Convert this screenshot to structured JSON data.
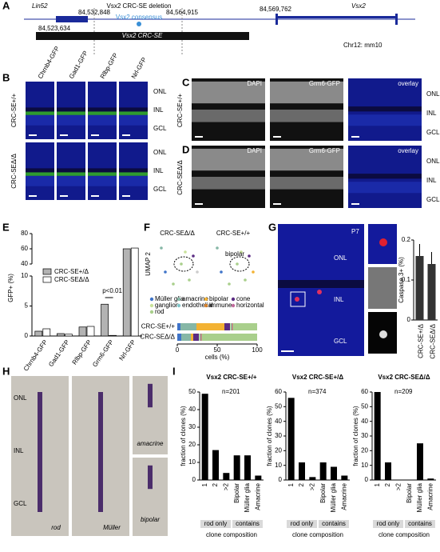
{
  "panel_a": {
    "letter": "A",
    "gene_left": "Lin52",
    "deletion_label": "Vsx2 CRC-SE deletion",
    "coord_start": "84,532,848",
    "coord_end": "84,564,915",
    "coord_vsx2": "84,569,762",
    "gene_right": "Vsx2",
    "consensus": "Vsx2 consensus",
    "coord_se_start": "84,523,634",
    "se_label": "Vsx2 CRC-SE",
    "assembly": "Chr12: mm10"
  },
  "panel_b": {
    "letter": "B",
    "columns": [
      "Chrnb4-GFP",
      "Gad1-GFP",
      "Rlbp-GFP",
      "Nrl-GFP"
    ],
    "rows": [
      "CRC-SE+/+",
      "CRC-SEΔ/Δ"
    ],
    "layers": [
      "ONL",
      "INL",
      "GCL"
    ]
  },
  "panel_cd": {
    "letters": [
      "C",
      "D"
    ],
    "columns": [
      "DAPI",
      "Grm6-GFP",
      "overlay"
    ],
    "rows": [
      "CRC-SE+/+",
      "CRC-SEΔ/Δ"
    ],
    "layers": [
      "ONL",
      "INL",
      "GCL"
    ]
  },
  "panel_e": {
    "letter": "E"
  },
  "panel_f": {
    "letter": "F",
    "umap_titles": [
      "CRC-SEΔ/Δ",
      "CRC-SE+/+"
    ],
    "umap_axis": "UMAP 2",
    "cluster": "bipolar"
  },
  "panel_g": {
    "letter": "G",
    "age": "P7",
    "layers": [
      "ONL",
      "INL",
      "GCL"
    ]
  },
  "panel_h": {
    "letter": "H",
    "layers": [
      "ONL",
      "INL",
      "GCL"
    ],
    "cells": [
      "rod",
      "Müller",
      "amacrine",
      "bipolar"
    ]
  },
  "panel_i": {
    "letter": "I"
  },
  "chart_data": [
    {
      "type": "bar",
      "ylabel": "GFP+ (%)",
      "categories": [
        "Chrnb4-GFP",
        "Gad1-GFP",
        "Rlbp-GFP",
        "Grm6-GFP",
        "Nrl-GFP"
      ],
      "series": [
        {
          "name": "CRC-SE+/Δ",
          "color": "#b3b3b3",
          "values": [
            0.8,
            0.4,
            1.5,
            5.3,
            60
          ]
        },
        {
          "name": "CRC-SEΔ/Δ",
          "color": "#ffffff",
          "values": [
            1.2,
            0.3,
            1.6,
            0.1,
            61
          ]
        }
      ],
      "axis_segments": [
        {
          "ylim": [
            0,
            10
          ],
          "yticks": [
            0,
            5,
            10
          ]
        },
        {
          "ylim": [
            40,
            80
          ],
          "yticks": [
            40,
            60,
            80
          ]
        }
      ],
      "annotation": "p<0.01"
    },
    {
      "type": "hbar_stacked",
      "xlabel": "cells (%)",
      "categories": [
        "CRC-SE+/+",
        "CRC-SEΔ/Δ"
      ],
      "xlim": [
        0,
        100
      ],
      "xticks": [
        0,
        50,
        100
      ],
      "series": [
        {
          "name": "Müller glia",
          "color": "#3f74c9",
          "values": [
            4,
            5
          ]
        },
        {
          "name": "amacrine",
          "color": "#86b7a6",
          "values": [
            20,
            12
          ]
        },
        {
          "name": "bipolar",
          "color": "#f3b233",
          "values": [
            35,
            3
          ]
        },
        {
          "name": "cone",
          "color": "#5b2c83",
          "values": [
            7,
            7
          ]
        },
        {
          "name": "ganglion",
          "color": "#c9e29a",
          "values": [
            1,
            1
          ]
        },
        {
          "name": "endothelial",
          "color": "#7fc6c9",
          "values": [
            1,
            1
          ]
        },
        {
          "name": "immune",
          "color": "#d9822b",
          "values": [
            0.5,
            0.5
          ]
        },
        {
          "name": "horizontal",
          "color": "#c06a9b",
          "values": [
            1,
            1
          ]
        },
        {
          "name": "rod",
          "color": "#a9cf8c",
          "values": [
            30.5,
            69.5
          ]
        }
      ]
    },
    {
      "type": "bar",
      "ylabel": "Caspase 3+ (%)",
      "categories": [
        "CRC-SE+/Δ",
        "CRC-SEΔ/Δ"
      ],
      "values": [
        0.16,
        0.14
      ],
      "errors": [
        0.03,
        0.03
      ],
      "color": "#333333",
      "ylim": [
        0,
        0.2
      ],
      "yticks": [
        0,
        0.1,
        0.2
      ]
    },
    {
      "type": "bar",
      "title": "Vsx2 CRC-SE+/+",
      "n_label": "n=201",
      "ylabel": "fraction of clones (%)",
      "categories": [
        "1",
        "2",
        ">2",
        "Bipolar",
        "Müller glia",
        "Amacrine"
      ],
      "values": [
        49,
        17,
        4,
        14,
        14,
        2.5
      ],
      "color": "#000000",
      "ylim": [
        0,
        50
      ],
      "yticks": [
        0,
        10,
        20,
        30,
        40,
        50
      ],
      "groups": [
        "rod only",
        "contains"
      ],
      "xlabel": "clone composition"
    },
    {
      "type": "bar",
      "title": "Vsx2 CRC-SE+/Δ",
      "n_label": "n=374",
      "ylabel": "fraction of clones (%)",
      "categories": [
        "1",
        "2",
        ">2",
        "Bipolar",
        "Müller glia",
        "Amacrine"
      ],
      "values": [
        56,
        12,
        2,
        12,
        9,
        3
      ],
      "color": "#000000",
      "ylim": [
        0,
        60
      ],
      "yticks": [
        0,
        10,
        20,
        30,
        40,
        50,
        60
      ],
      "groups": [
        "rod only",
        "contains"
      ],
      "xlabel": "clone composition"
    },
    {
      "type": "bar",
      "title": "Vsx2 CRC-SEΔ/Δ",
      "n_label": "n=209",
      "ylabel": "fraction of clones (%)",
      "categories": [
        "1",
        "2",
        ">2",
        "Bipolar",
        "Müller glia",
        "Amacrine"
      ],
      "values": [
        60,
        12,
        0,
        0,
        25,
        1
      ],
      "color": "#000000",
      "ylim": [
        0,
        60
      ],
      "yticks": [
        0,
        10,
        20,
        30,
        40,
        50,
        60
      ],
      "groups": [
        "rod only",
        "contains"
      ],
      "xlabel": "clone composition"
    }
  ]
}
